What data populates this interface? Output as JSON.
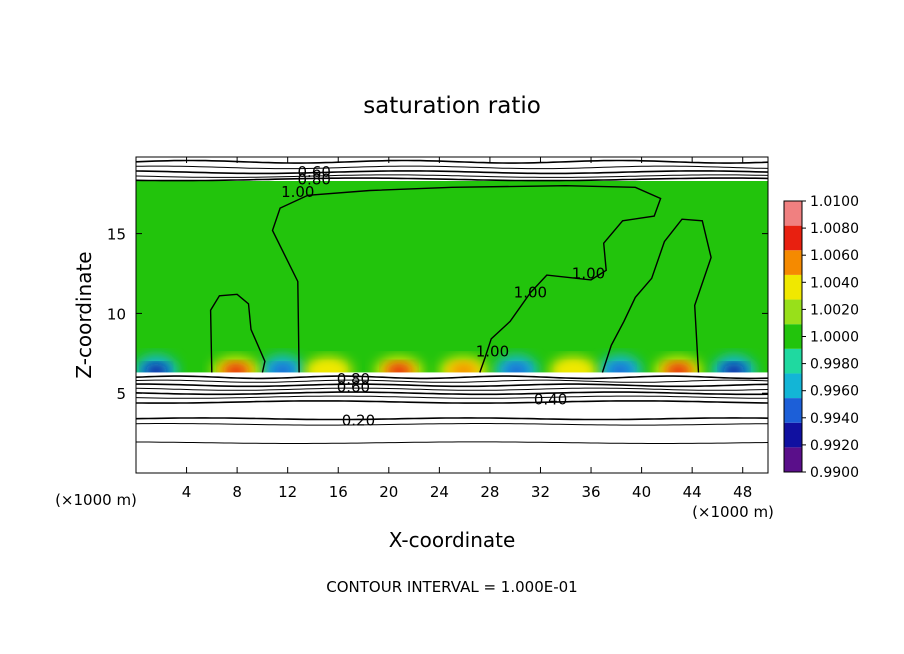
{
  "chart_data": {
    "type": "heatmap",
    "title": "saturation ratio",
    "xlabel": "X-coordinate",
    "ylabel": "Z-coordinate",
    "x_unit_left": "(×1000 m)",
    "x_unit_right": "(×1000 m)",
    "footnote": "CONTOUR INTERVAL = 1.000E-01",
    "xlim": [
      0,
      50
    ],
    "ylim": [
      0,
      19.8
    ],
    "x_ticks": [
      4,
      8,
      12,
      16,
      20,
      24,
      28,
      32,
      36,
      40,
      44,
      48
    ],
    "x_tick_labels": [
      "4",
      "8",
      "12",
      "16",
      "20",
      "24",
      "28",
      "32",
      "36",
      "40",
      "44",
      "48"
    ],
    "y_ticks": [
      5,
      10,
      15
    ],
    "y_tick_labels": [
      "5",
      "10",
      "15"
    ],
    "grid": false,
    "legend_placement": "right",
    "colorbar": {
      "levels": [
        0.99,
        0.992,
        0.994,
        0.996,
        0.998,
        1.0,
        1.002,
        1.004,
        1.006,
        1.008,
        1.01
      ],
      "labels": [
        "0.9900",
        "0.9920",
        "0.9940",
        "0.9960",
        "0.9980",
        "1.0000",
        "1.0020",
        "1.0040",
        "1.0060",
        "1.0080",
        "1.0100"
      ],
      "colors": [
        "#5a0f8a",
        "#1010a0",
        "#1c5fd8",
        "#13b5d6",
        "#1fd9a0",
        "#22c40c",
        "#98e01a",
        "#f0e800",
        "#f58a00",
        "#e82010",
        "#f08080"
      ]
    },
    "filled_region_z": [
      6.3,
      18.3
    ],
    "contour_levels": [
      0.2,
      0.4,
      0.6,
      0.8,
      1.0
    ],
    "contour_labels": [
      {
        "text": "0.60",
        "x": 14.1,
        "z": 18.85
      },
      {
        "text": "0.80",
        "x": 14.1,
        "z": 18.4
      },
      {
        "text": "1.00",
        "x": 12.8,
        "z": 17.6
      },
      {
        "text": "1.00",
        "x": 31.2,
        "z": 11.3
      },
      {
        "text": "1.00",
        "x": 35.8,
        "z": 12.5
      },
      {
        "text": "1.00",
        "x": 28.2,
        "z": 7.6
      },
      {
        "text": "0.80",
        "x": 17.2,
        "z": 5.9
      },
      {
        "text": "0.60",
        "x": 17.2,
        "z": 5.4
      },
      {
        "text": "0.40",
        "x": 32.8,
        "z": 4.6
      },
      {
        "text": "0.20",
        "x": 17.6,
        "z": 3.3
      }
    ],
    "hotspots": [
      {
        "x": 7.9,
        "z": 6.4,
        "value": 1.008
      },
      {
        "x": 15.2,
        "z": 6.4,
        "value": 1.005
      },
      {
        "x": 20.8,
        "z": 6.4,
        "value": 1.009
      },
      {
        "x": 25.9,
        "z": 6.4,
        "value": 1.006
      },
      {
        "x": 34.6,
        "z": 6.4,
        "value": 1.004
      },
      {
        "x": 42.9,
        "z": 6.4,
        "value": 1.008
      }
    ],
    "coldspots": [
      {
        "x": 1.6,
        "z": 6.4,
        "value": 0.993
      },
      {
        "x": 11.6,
        "z": 6.4,
        "value": 0.995
      },
      {
        "x": 30.1,
        "z": 6.4,
        "value": 0.995
      },
      {
        "x": 38.3,
        "z": 6.4,
        "value": 0.995
      },
      {
        "x": 47.3,
        "z": 6.4,
        "value": 0.993
      }
    ]
  }
}
